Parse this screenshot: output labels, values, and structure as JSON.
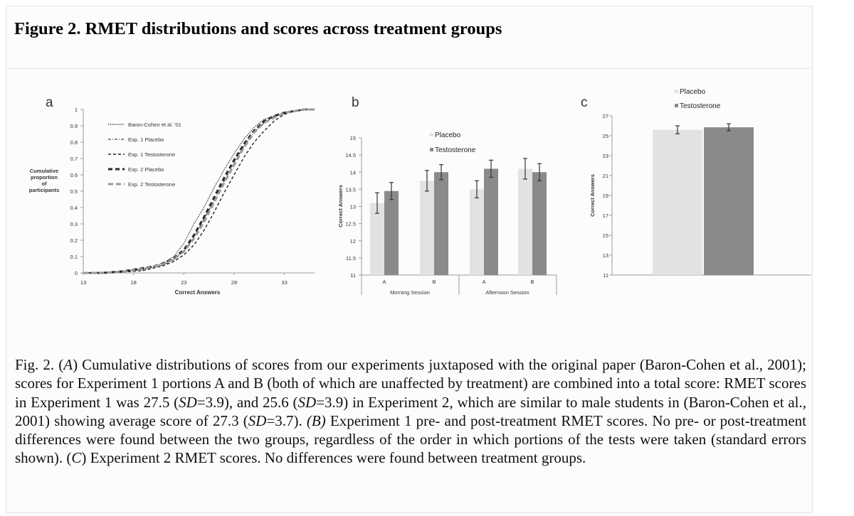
{
  "figure_title": "Figure 2. RMET distributions and scores across treatment groups",
  "caption": {
    "p1": "Fig. 2. (",
    "i1": "A",
    "p2": ") Cumulative distributions of scores from our experiments juxtaposed with the original paper (Baron-Cohen et al., 2001); scores for Experiment 1 portions A and B (both of which are unaffected by treatment) are combined into a total score: RMET scores in Experiment 1 was 27.5 (",
    "i2": "SD",
    "p3": "=3.9), and 25.6 (",
    "i3": "SD",
    "p4": "=3.9) in Experiment 2, which are similar to male students in (Baron-Cohen et al., 2001) showing average score of 27.3 (",
    "i4": "SD",
    "p5": "=3.7). ",
    "i5": "(B)",
    "p6": " Experiment 1 pre- and post-treatment RMET scores. No pre- or post-treatment differences were found between the two groups, regardless of the order in which portions of the tests were taken (standard errors shown). (",
    "i6": "C",
    "p7": ") Experiment 2 RMET scores. No differences were found between treatment groups."
  },
  "colors": {
    "placebo": "#e2e2e2",
    "testosterone": "#8a8a8a",
    "axis": "#9a9a9a",
    "text": "#333333",
    "errorbar": "#333333"
  },
  "chart_data": [
    {
      "panel": "a",
      "type": "line",
      "xlabel": "Correct Answers",
      "ylabel": [
        "Cumulative",
        "proportion",
        "of",
        "participants"
      ],
      "xlim": [
        13,
        36
      ],
      "ylim": [
        0,
        1
      ],
      "xticks": [
        13,
        18,
        23,
        28,
        33
      ],
      "yticks": [
        0,
        0.1,
        0.2,
        0.3,
        0.4,
        0.5,
        0.6,
        0.7,
        0.8,
        0.9,
        1
      ],
      "ytick_labels": [
        "0",
        "0.1",
        "0.2",
        "0.3",
        "0.4",
        "0.5",
        "0.6",
        "0.7",
        "0.8",
        "0.9",
        "1"
      ],
      "legend": "top-left",
      "series": [
        {
          "name": "Baron-Cohen et al. '01",
          "style": "dotted",
          "x": [
            13,
            15,
            17,
            19,
            20,
            21,
            22,
            23,
            24,
            25,
            26,
            27,
            28,
            29,
            30,
            31,
            32,
            33,
            34,
            35,
            36
          ],
          "y": [
            0,
            0.005,
            0.01,
            0.025,
            0.04,
            0.06,
            0.1,
            0.18,
            0.3,
            0.4,
            0.52,
            0.63,
            0.73,
            0.82,
            0.89,
            0.94,
            0.96,
            0.98,
            0.99,
            1,
            1
          ]
        },
        {
          "name": "Exp. 1 Placebo",
          "style": "dashdot",
          "x": [
            13,
            15,
            17,
            19,
            20,
            21,
            22,
            23,
            24,
            25,
            26,
            27,
            28,
            29,
            30,
            31,
            32,
            33,
            34,
            35,
            36
          ],
          "y": [
            0,
            0,
            0.008,
            0.02,
            0.035,
            0.05,
            0.08,
            0.13,
            0.22,
            0.33,
            0.44,
            0.56,
            0.67,
            0.78,
            0.86,
            0.92,
            0.96,
            0.98,
            0.99,
            1,
            1
          ]
        },
        {
          "name": "Exp. 1 Testosterone",
          "style": "dashed",
          "x": [
            13,
            15,
            17,
            19,
            20,
            21,
            22,
            23,
            24,
            25,
            26,
            27,
            28,
            29,
            30,
            31,
            32,
            33,
            34,
            35,
            36
          ],
          "y": [
            0,
            0,
            0.005,
            0.015,
            0.03,
            0.045,
            0.07,
            0.11,
            0.17,
            0.26,
            0.37,
            0.49,
            0.6,
            0.71,
            0.8,
            0.87,
            0.93,
            0.97,
            0.99,
            1,
            1
          ]
        },
        {
          "name": "Exp. 2 Placebo",
          "style": "thick-dash",
          "x": [
            13,
            15,
            17,
            19,
            20,
            21,
            22,
            23,
            24,
            25,
            26,
            27,
            28,
            29,
            30,
            31,
            32,
            33,
            34,
            35,
            36
          ],
          "y": [
            0,
            0,
            0.01,
            0.03,
            0.04,
            0.06,
            0.09,
            0.14,
            0.23,
            0.34,
            0.46,
            0.58,
            0.69,
            0.79,
            0.87,
            0.93,
            0.96,
            0.98,
            0.99,
            1,
            1
          ]
        },
        {
          "name": "Exp. 2 Testosterone",
          "style": "gray-dash",
          "x": [
            13,
            15,
            17,
            19,
            20,
            21,
            22,
            23,
            24,
            25,
            26,
            27,
            28,
            29,
            30,
            31,
            32,
            33,
            34,
            35,
            36
          ],
          "y": [
            0,
            0,
            0.008,
            0.025,
            0.04,
            0.055,
            0.085,
            0.13,
            0.21,
            0.31,
            0.43,
            0.55,
            0.66,
            0.77,
            0.86,
            0.92,
            0.95,
            0.98,
            0.99,
            1,
            1
          ]
        }
      ]
    },
    {
      "panel": "b",
      "type": "bar",
      "ylabel": "Correct Answers",
      "ylim": [
        11,
        15
      ],
      "yticks": [
        11,
        11.5,
        12,
        12.5,
        13,
        13.5,
        14,
        14.5,
        15
      ],
      "ytick_labels": [
        "11",
        "11.5",
        "12",
        "12.5",
        "13",
        "13.5",
        "14",
        "14.5",
        "15"
      ],
      "categories": [
        "A",
        "B",
        "A",
        "B"
      ],
      "groups": [
        "Morning Session",
        "Afternoon Session"
      ],
      "legend": "top-center",
      "series": [
        {
          "name": "Placebo",
          "values": [
            13.1,
            13.75,
            13.5,
            14.1
          ],
          "errors": [
            0.3,
            0.3,
            0.25,
            0.3
          ]
        },
        {
          "name": "Testosterone",
          "values": [
            13.45,
            14.0,
            14.1,
            14.0
          ],
          "errors": [
            0.25,
            0.22,
            0.25,
            0.25
          ]
        }
      ]
    },
    {
      "panel": "c",
      "type": "bar",
      "ylabel": "Correct Answers",
      "ylim": [
        11,
        27
      ],
      "yticks": [
        11,
        13,
        15,
        17,
        19,
        21,
        23,
        25,
        27
      ],
      "ytick_labels": [
        "11",
        "13",
        "15",
        "17",
        "19",
        "21",
        "23",
        "25",
        "27"
      ],
      "categories": [
        ""
      ],
      "legend": "top-center",
      "series": [
        {
          "name": "Placebo",
          "values": [
            25.6
          ],
          "errors": [
            0.4
          ]
        },
        {
          "name": "Testosterone",
          "values": [
            25.85
          ],
          "errors": [
            0.35
          ]
        }
      ]
    }
  ]
}
